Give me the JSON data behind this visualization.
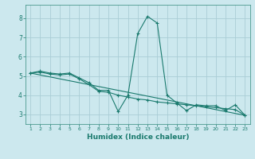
{
  "xlabel": "Humidex (Indice chaleur)",
  "background_color": "#cce8ee",
  "grid_color": "#aacdd6",
  "line_color": "#1a7a6e",
  "spine_color": "#4a9a8e",
  "xlim": [
    0.5,
    23.5
  ],
  "ylim": [
    2.5,
    8.7
  ],
  "xticks": [
    1,
    2,
    3,
    4,
    5,
    6,
    7,
    8,
    9,
    10,
    11,
    12,
    13,
    14,
    15,
    16,
    17,
    18,
    19,
    20,
    21,
    22,
    23
  ],
  "yticks": [
    3,
    4,
    5,
    6,
    7,
    8
  ],
  "series": [
    {
      "x": [
        1,
        2,
        3,
        4,
        5,
        6,
        7,
        8,
        9,
        10,
        11,
        12,
        13,
        14,
        15,
        16,
        17,
        18,
        19,
        20,
        21,
        22,
        23
      ],
      "y": [
        5.15,
        5.25,
        5.15,
        5.1,
        5.15,
        4.9,
        4.65,
        4.25,
        4.25,
        3.15,
        4.0,
        7.2,
        8.1,
        7.75,
        4.0,
        3.6,
        3.2,
        3.5,
        3.45,
        3.45,
        3.2,
        3.5,
        2.95
      ],
      "marker": true
    },
    {
      "x": [
        1,
        23
      ],
      "y": [
        5.15,
        2.95
      ],
      "marker": false
    },
    {
      "x": [
        1,
        2,
        3,
        4,
        5,
        6,
        7,
        8,
        9,
        10,
        11,
        12,
        13,
        14,
        15,
        16,
        17,
        18,
        19,
        20,
        21,
        22,
        23
      ],
      "y": [
        5.15,
        5.2,
        5.1,
        5.05,
        5.1,
        4.85,
        4.55,
        4.2,
        4.15,
        4.0,
        3.9,
        3.8,
        3.75,
        3.65,
        3.6,
        3.55,
        3.5,
        3.45,
        3.4,
        3.35,
        3.3,
        3.25,
        2.95
      ],
      "marker": true
    }
  ]
}
